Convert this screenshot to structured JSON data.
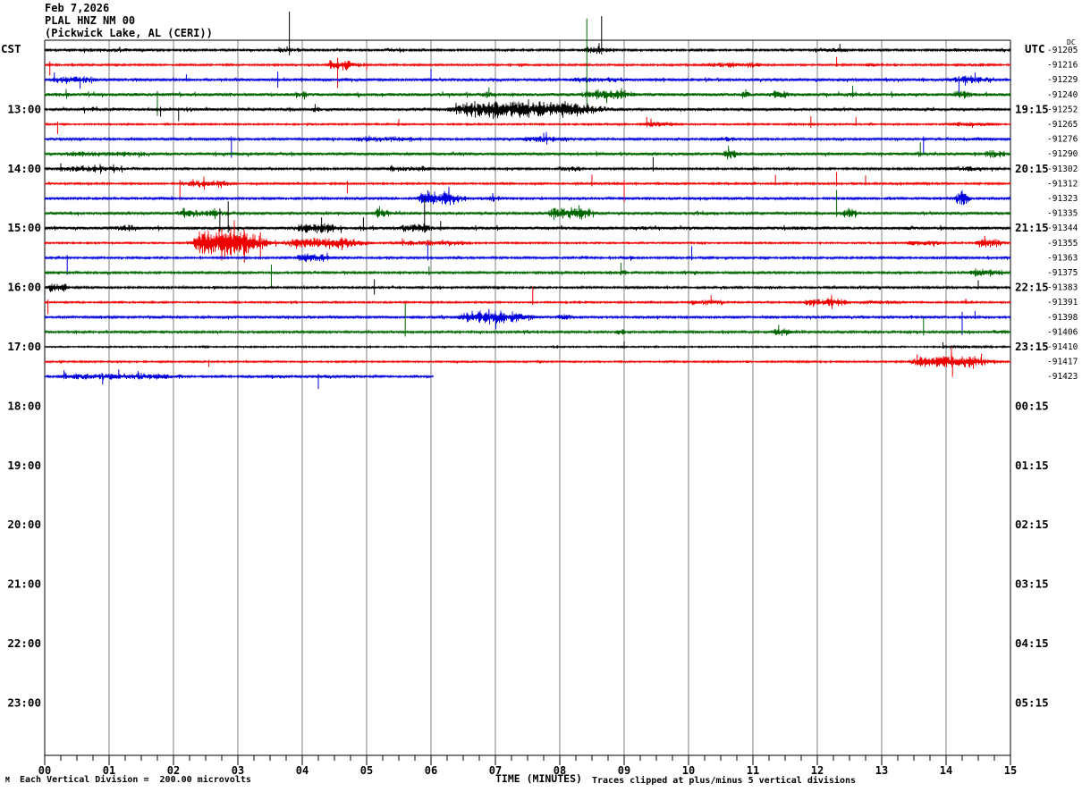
{
  "header": {
    "date": "Feb 7,2026",
    "station": "PLAL HNZ NM 00",
    "location": "(Pickwick Lake, AL (CERI))"
  },
  "axes": {
    "left_timezone": "CST",
    "right_timezone": "UTC",
    "dc_header": "DC",
    "left_hour_labels": [
      "13:00",
      "14:00",
      "15:00",
      "16:00",
      "17:00",
      "18:00",
      "19:00",
      "20:00",
      "21:00",
      "22:00",
      "23:00"
    ],
    "right_hour_labels": [
      "19:15",
      "20:15",
      "21:15",
      "22:15",
      "23:15",
      "00:15",
      "01:15",
      "02:15",
      "03:15",
      "04:15",
      "05:15"
    ],
    "minute_labels": [
      "00",
      "01",
      "02",
      "03",
      "04",
      "05",
      "06",
      "07",
      "08",
      "09",
      "10",
      "11",
      "12",
      "13",
      "14",
      "15"
    ],
    "x_axis_title": "TIME (MINUTES)"
  },
  "footer": {
    "scale_note": "Each Vertical Division =  200.00 microvolts",
    "clip_note": "Traces clipped at plus/minus 5 vertical divisions",
    "corner_mark": "M"
  },
  "colors": {
    "black": "#000000",
    "red": "#ee0000",
    "blue": "#0000dd",
    "green": "#006600",
    "grid": "#808080"
  },
  "chart_data": {
    "type": "line",
    "title": "PLAL HNZ NM 00 helicorder traces",
    "x_range_minutes": [
      0,
      15
    ],
    "minutes_per_line": 15,
    "row_interval_minutes": 15,
    "dc_values": [
      "-91205",
      "-91216",
      "-91229",
      "-91240",
      "-91252",
      "-91265",
      "-91276",
      "-91290",
      "-91302",
      "-91312",
      "-91323",
      "-91335",
      "-91344",
      "-91355",
      "-91363",
      "-91375",
      "-91383",
      "-91391",
      "-91398",
      "-91406",
      "-91410",
      "-91417",
      "-91423"
    ],
    "traces": [
      {
        "start_cst": "12:00",
        "color": "black",
        "dc": "-91205",
        "base": 1.1,
        "extent": 15,
        "events": [
          [
            0.3,
            2.2,
            1.6
          ],
          [
            3.55,
            3.95,
            3
          ],
          [
            5.2,
            5.75,
            2
          ],
          [
            8.3,
            9.0,
            3.5
          ],
          [
            11.8,
            12.7,
            2.2
          ],
          [
            13.8,
            14.6,
            1.8
          ]
        ],
        "spikes": [
          [
            3.8,
            43,
            6
          ],
          [
            8.65,
            38,
            5
          ],
          [
            12.35,
            7,
            2
          ]
        ]
      },
      {
        "start_cst": "12:15",
        "color": "red",
        "dc": "-91216",
        "base": 1.0,
        "extent": 15,
        "events": [
          [
            4.3,
            5.0,
            4.5
          ],
          [
            7.3,
            7.6,
            1.8
          ],
          [
            10.1,
            11.4,
            2.5
          ],
          [
            12.7,
            13.0,
            1.8
          ],
          [
            14.0,
            15,
            1.5
          ]
        ],
        "spikes": [
          [
            0.08,
            4,
            12
          ],
          [
            4.55,
            8,
            26
          ],
          [
            5.0,
            3,
            6
          ],
          [
            12.3,
            9,
            2
          ]
        ]
      },
      {
        "start_cst": "12:30",
        "color": "blue",
        "dc": "-91229",
        "base": 1.3,
        "extent": 15,
        "events": [
          [
            0.0,
            0.95,
            3.5
          ],
          [
            4.5,
            5.2,
            1.5
          ],
          [
            8.0,
            9.4,
            2.5
          ],
          [
            10.5,
            11.0,
            1.6
          ],
          [
            13.9,
            15,
            3.5
          ]
        ],
        "spikes": [
          [
            0.15,
            8,
            3
          ],
          [
            0.55,
            3,
            10
          ],
          [
            2.2,
            6,
            2
          ],
          [
            3.62,
            9,
            9
          ],
          [
            6.0,
            12,
            2
          ],
          [
            14.2,
            4,
            18
          ],
          [
            14.45,
            8,
            3
          ]
        ]
      },
      {
        "start_cst": "12:45",
        "color": "green",
        "dc": "-91240",
        "base": 1.7,
        "extent": 15,
        "events": [
          [
            0.0,
            0.5,
            2.2
          ],
          [
            3.85,
            4.15,
            4
          ],
          [
            6.7,
            7.05,
            3
          ],
          [
            8.2,
            9.35,
            4.5
          ],
          [
            10.8,
            11.0,
            6
          ],
          [
            11.2,
            11.65,
            3.5
          ],
          [
            12.4,
            12.7,
            2.5
          ],
          [
            14.05,
            14.45,
            4
          ]
        ],
        "spikes": [
          [
            1.75,
            4,
            24
          ],
          [
            6.9,
            8,
            2
          ],
          [
            8.42,
            85,
            12
          ],
          [
            12.55,
            10,
            3
          ]
        ]
      },
      {
        "start_cst": "13:00",
        "color": "black",
        "dc": "-91252",
        "base": 1.4,
        "extent": 15,
        "events": [
          [
            0.5,
            1.0,
            1.8
          ],
          [
            4.1,
            4.35,
            2.5
          ],
          [
            6.1,
            9.05,
            8
          ],
          [
            12.1,
            12.4,
            1.6
          ],
          [
            13.2,
            13.5,
            1.6
          ]
        ],
        "spikes": [
          [
            1.8,
            3,
            8
          ],
          [
            2.08,
            2,
            13
          ],
          [
            4.2,
            6,
            3
          ]
        ]
      },
      {
        "start_cst": "13:15",
        "color": "red",
        "dc": "-91265",
        "base": 0.9,
        "extent": 15,
        "events": [
          [
            9.2,
            9.95,
            2.8
          ],
          [
            11.8,
            12.0,
            1.5
          ],
          [
            13.9,
            15,
            2
          ]
        ],
        "spikes": [
          [
            0.2,
            3,
            11
          ],
          [
            5.5,
            6,
            2
          ],
          [
            9.35,
            8,
            2
          ],
          [
            11.9,
            9,
            4
          ],
          [
            12.6,
            8,
            2
          ]
        ]
      },
      {
        "start_cst": "13:30",
        "color": "blue",
        "dc": "-91276",
        "base": 1.2,
        "extent": 15,
        "events": [
          [
            4.55,
            6.2,
            2.6
          ],
          [
            7.25,
            8.35,
            3.2
          ],
          [
            10.35,
            10.85,
            2.2
          ],
          [
            14.0,
            15,
            1.8
          ]
        ],
        "spikes": [
          [
            2.9,
            3,
            21
          ],
          [
            7.75,
            7,
            3
          ],
          [
            13.65,
            3,
            17
          ]
        ]
      },
      {
        "start_cst": "13:45",
        "color": "green",
        "dc": "-91290",
        "base": 1.5,
        "extent": 15,
        "events": [
          [
            0.0,
            2.2,
            2.4
          ],
          [
            6.4,
            6.6,
            2
          ],
          [
            10.5,
            10.8,
            5
          ],
          [
            14.55,
            15,
            3.5
          ]
        ],
        "spikes": [
          [
            10.62,
            9,
            3
          ],
          [
            13.6,
            13,
            3
          ]
        ]
      },
      {
        "start_cst": "14:00",
        "color": "black",
        "dc": "-91302",
        "base": 1.1,
        "extent": 15,
        "events": [
          [
            0.0,
            1.6,
            2.6
          ],
          [
            5.2,
            6.3,
            2.6
          ],
          [
            7.9,
            8.45,
            2.6
          ],
          [
            10.9,
            11.1,
            1.5
          ],
          [
            13.7,
            15,
            2.2
          ]
        ],
        "spikes": [
          [
            0.25,
            6,
            3
          ],
          [
            9.45,
            13,
            3
          ]
        ]
      },
      {
        "start_cst": "14:15",
        "color": "red",
        "dc": "-91312",
        "base": 1.0,
        "extent": 15,
        "events": [
          [
            2.05,
            3.1,
            3.5
          ],
          [
            13.5,
            13.8,
            1.6
          ]
        ],
        "spikes": [
          [
            2.1,
            4,
            19
          ],
          [
            4.7,
            3,
            11
          ],
          [
            8.5,
            10,
            3
          ],
          [
            9.0,
            4,
            21
          ],
          [
            11.35,
            10,
            2
          ],
          [
            12.3,
            13,
            3
          ],
          [
            12.75,
            9,
            2
          ]
        ]
      },
      {
        "start_cst": "14:30",
        "color": "blue",
        "dc": "-91323",
        "base": 1.2,
        "extent": 15,
        "events": [
          [
            5.7,
            6.65,
            6.5
          ],
          [
            6.85,
            7.15,
            3
          ],
          [
            9.9,
            10.2,
            1.6
          ],
          [
            14.1,
            14.4,
            6
          ]
        ],
        "spikes": [
          [
            5.95,
            9,
            4
          ],
          [
            14.25,
            8,
            3
          ]
        ]
      },
      {
        "start_cst": "14:45",
        "color": "green",
        "dc": "-91335",
        "base": 1.4,
        "extent": 15,
        "events": [
          [
            1.9,
            3.1,
            3.2
          ],
          [
            5.1,
            5.4,
            5
          ],
          [
            7.75,
            8.65,
            5.5
          ],
          [
            10.3,
            10.55,
            2
          ],
          [
            12.35,
            12.65,
            4
          ]
        ],
        "spikes": [
          [
            5.2,
            8,
            3
          ],
          [
            8.3,
            9,
            3
          ],
          [
            12.3,
            26,
            4
          ]
        ]
      },
      {
        "start_cst": "15:00",
        "color": "black",
        "dc": "-91344",
        "base": 1.6,
        "extent": 15,
        "events": [
          [
            0.95,
            1.6,
            3.2
          ],
          [
            3.8,
            4.75,
            4.5
          ],
          [
            5.45,
            6.15,
            4
          ],
          [
            9.2,
            9.45,
            2
          ],
          [
            11.4,
            12.6,
            2
          ],
          [
            13.3,
            13.6,
            1.8
          ]
        ],
        "spikes": [
          [
            2.72,
            22,
            4
          ],
          [
            2.85,
            30,
            5
          ],
          [
            4.3,
            12,
            4
          ],
          [
            4.95,
            12,
            3
          ],
          [
            5.9,
            33,
            5
          ],
          [
            6.15,
            8,
            3
          ]
        ]
      },
      {
        "start_cst": "15:15",
        "color": "red",
        "dc": "-91355",
        "base": 0.9,
        "extent": 15,
        "events": [
          [
            2.2,
            3.6,
            13
          ],
          [
            3.6,
            5.25,
            5.5
          ],
          [
            5.25,
            6.9,
            2.6
          ],
          [
            13.3,
            14.1,
            2.4
          ],
          [
            14.4,
            15,
            4
          ]
        ],
        "spikes": [
          [
            2.75,
            16,
            20
          ],
          [
            3.1,
            14,
            22
          ],
          [
            3.35,
            12,
            18
          ],
          [
            14.6,
            8,
            3
          ]
        ]
      },
      {
        "start_cst": "15:30",
        "color": "blue",
        "dc": "-91363",
        "base": 1.1,
        "extent": 15,
        "events": [
          [
            3.85,
            4.6,
            4.5
          ],
          [
            9.0,
            9.2,
            1.5
          ]
        ],
        "spikes": [
          [
            0.35,
            3,
            19
          ],
          [
            5.95,
            15,
            3
          ],
          [
            10.05,
            13,
            3
          ]
        ]
      },
      {
        "start_cst": "15:45",
        "color": "green",
        "dc": "-91375",
        "base": 1.2,
        "extent": 15,
        "events": [
          [
            8.9,
            9.1,
            2.5
          ],
          [
            10.0,
            10.2,
            2
          ],
          [
            14.3,
            15,
            3.5
          ]
        ],
        "spikes": [
          [
            3.52,
            9,
            16
          ],
          [
            5.97,
            7,
            3
          ],
          [
            8.95,
            11,
            3
          ]
        ]
      },
      {
        "start_cst": "16:00",
        "color": "black",
        "dc": "-91383",
        "base": 1.1,
        "extent": 15,
        "events": [
          [
            0.0,
            0.4,
            4.5
          ],
          [
            9.0,
            9.2,
            1.3
          ],
          [
            12.2,
            12.5,
            1.6
          ]
        ],
        "spikes": [
          [
            5.12,
            9,
            8
          ],
          [
            14.5,
            8,
            2
          ]
        ]
      },
      {
        "start_cst": "16:15",
        "color": "red",
        "dc": "-91391",
        "base": 0.9,
        "extent": 15,
        "events": [
          [
            9.9,
            10.65,
            2.6
          ],
          [
            11.7,
            12.6,
            3.8
          ],
          [
            12.6,
            13.5,
            1.8
          ],
          [
            14.2,
            14.5,
            1.4
          ]
        ],
        "spikes": [
          [
            0.05,
            3,
            13
          ],
          [
            7.58,
            17,
            3
          ],
          [
            10.35,
            8,
            2
          ]
        ]
      },
      {
        "start_cst": "16:30",
        "color": "blue",
        "dc": "-91398",
        "base": 1.2,
        "extent": 15,
        "events": [
          [
            6.3,
            7.8,
            6
          ],
          [
            7.9,
            8.25,
            2.6
          ],
          [
            11.2,
            11.45,
            1.5
          ]
        ],
        "spikes": [
          [
            6.9,
            9,
            3
          ],
          [
            14.25,
            6,
            20
          ],
          [
            14.45,
            7,
            2
          ]
        ]
      },
      {
        "start_cst": "16:45",
        "color": "green",
        "dc": "-91406",
        "base": 1.2,
        "extent": 15,
        "events": [
          [
            8.85,
            9.05,
            3
          ],
          [
            11.25,
            11.7,
            3.5
          ],
          [
            14.7,
            15,
            2
          ]
        ],
        "spikes": [
          [
            5.6,
            32,
            5
          ],
          [
            11.4,
            8,
            3
          ],
          [
            13.65,
            16,
            4
          ]
        ]
      },
      {
        "start_cst": "17:00",
        "color": "black",
        "dc": "-91410",
        "base": 0.8,
        "extent": 15,
        "events": [
          [
            2.4,
            2.6,
            1.2
          ],
          [
            13.8,
            15,
            1.3
          ]
        ],
        "spikes": [
          [
            9.0,
            6,
            2
          ],
          [
            13.95,
            5,
            2
          ]
        ]
      },
      {
        "start_cst": "17:15",
        "color": "red",
        "dc": "-91417",
        "base": 0.9,
        "extent": 15,
        "events": [
          [
            13.3,
            15,
            5.5
          ]
        ],
        "spikes": [
          [
            2.55,
            2,
            6
          ],
          [
            13.55,
            8,
            3
          ],
          [
            14.1,
            6,
            17
          ],
          [
            14.55,
            9,
            3
          ]
        ]
      },
      {
        "start_cst": "17:30",
        "color": "blue",
        "dc": "-91423",
        "base": 1.0,
        "extent": 6.03,
        "events": [
          [
            0.0,
            2.6,
            3
          ],
          [
            2.6,
            6.0,
            1.4
          ]
        ],
        "spikes": [
          [
            0.3,
            7,
            3
          ],
          [
            0.9,
            3,
            9
          ],
          [
            1.15,
            8,
            3
          ],
          [
            1.45,
            6,
            3
          ],
          [
            4.25,
            3,
            14
          ]
        ]
      }
    ]
  }
}
